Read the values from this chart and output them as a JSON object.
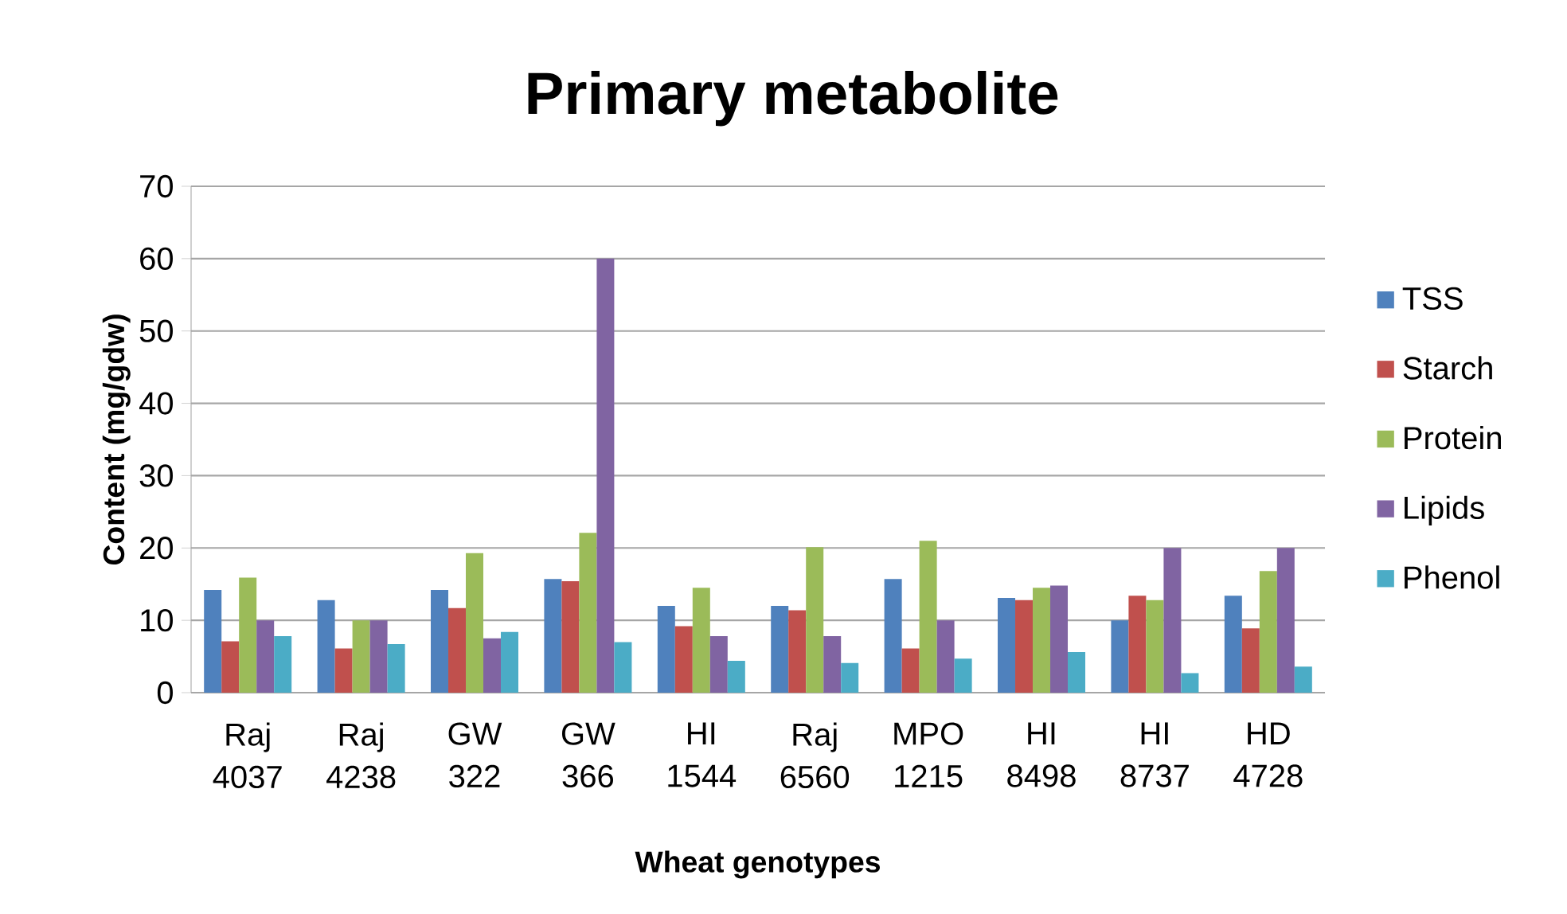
{
  "chart_data": {
    "type": "bar",
    "title": "Primary metabolite",
    "xlabel": "Wheat genotypes",
    "ylabel": "Content (mg/gdw)",
    "categories": [
      "Raj 4037",
      "Raj 4238",
      "GW 322",
      "GW 366",
      "HI 1544",
      "Raj 6560",
      "MPO 1215",
      "HI 8498",
      "HI 8737",
      "HD 4728"
    ],
    "series": [
      {
        "name": "TSS",
        "color": "#4f81bd",
        "values": [
          14.2,
          12.8,
          14.2,
          15.7,
          12.0,
          12.0,
          15.7,
          13.1,
          10.0,
          13.4
        ]
      },
      {
        "name": "Starch",
        "color": "#c0504d",
        "values": [
          7.1,
          6.1,
          11.7,
          15.4,
          9.2,
          11.4,
          6.1,
          12.8,
          13.4,
          8.9
        ]
      },
      {
        "name": "Protein",
        "color": "#9bbb59",
        "values": [
          15.9,
          10.0,
          19.3,
          22.1,
          14.5,
          20.1,
          21.0,
          14.5,
          12.8,
          16.8
        ]
      },
      {
        "name": "Lipids",
        "color": "#8064a2",
        "values": [
          10.0,
          10.0,
          7.5,
          60.0,
          7.8,
          7.8,
          10.0,
          14.8,
          20.0,
          20.0
        ]
      },
      {
        "name": "Phenol",
        "color": "#4bacc6",
        "values": [
          7.8,
          6.7,
          8.4,
          7.0,
          4.4,
          4.1,
          4.7,
          5.6,
          2.7,
          3.6
        ]
      }
    ],
    "ylim": [
      0,
      70
    ],
    "yticks": [
      0,
      10,
      20,
      30,
      40,
      50,
      60,
      70
    ],
    "grid": "y",
    "legend": "right"
  }
}
